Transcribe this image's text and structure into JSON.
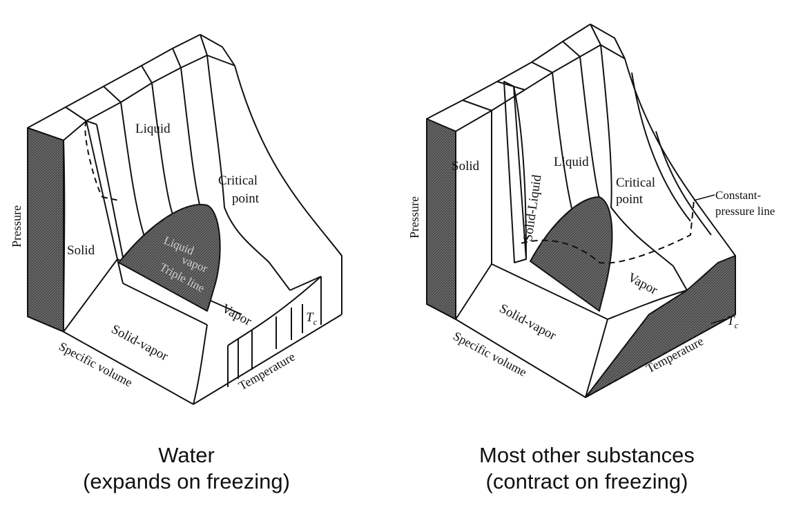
{
  "left_diagram": {
    "labels": {
      "liquid": "Liquid",
      "critical_1": "Critical",
      "critical_2": "point",
      "solid": "Solid",
      "liquid_dome": "Liquid",
      "vapor_dome": "vapor",
      "triple_line": "Triple line",
      "vapor": "Vapor",
      "solid_vapor": "Solid-vapor",
      "tc": "T",
      "tc_sub": "c",
      "pressure": "Pressure",
      "specific_volume": "Specific volume",
      "temperature": "Temperature"
    },
    "caption": {
      "line1": "Water",
      "line2": "(expands on freezing)"
    }
  },
  "right_diagram": {
    "labels": {
      "solid": "Solid",
      "solid_liquid": "Solid-Liquid",
      "liquid": "Liquid",
      "critical_1": "Critical",
      "critical_2": "point",
      "constant_1": "Constant-",
      "constant_2": "pressure line",
      "vapor": "Vapor",
      "solid_vapor": "Solid-vapor",
      "tc": "T",
      "tc_sub": "c",
      "pressure": "Pressure",
      "specific_volume": "Specific volume",
      "temperature": "Temperature"
    },
    "caption": {
      "line1": "Most other substances",
      "line2": "(contract on freezing)"
    }
  }
}
